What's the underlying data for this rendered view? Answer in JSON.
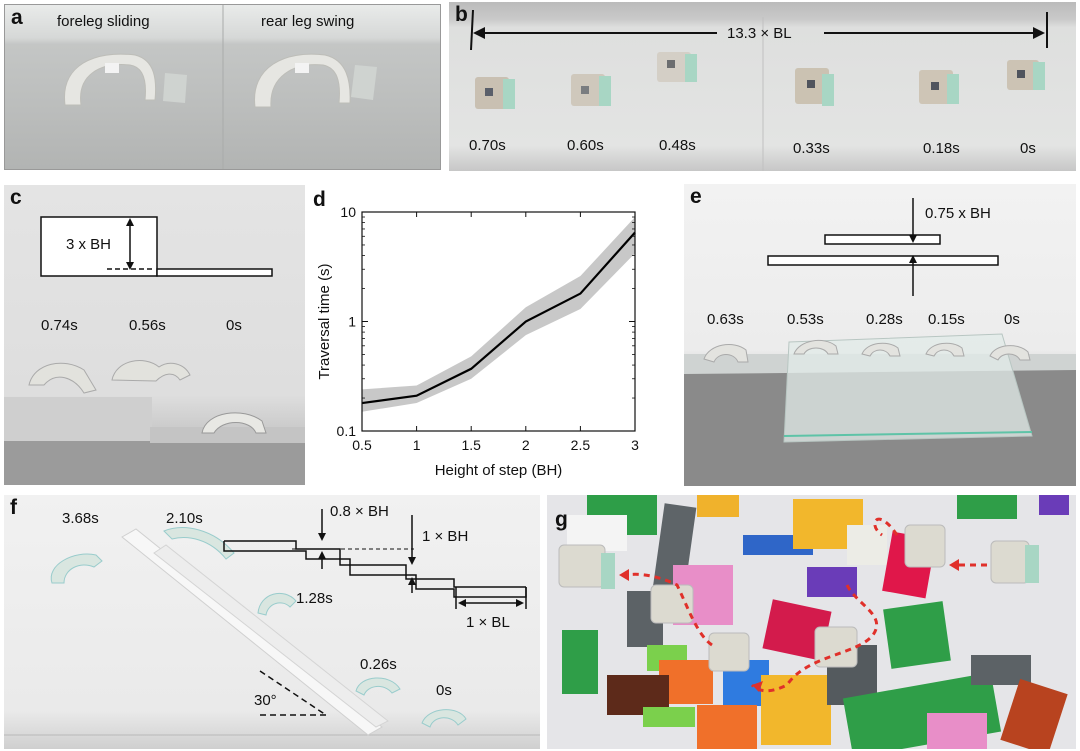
{
  "panel_a": {
    "label": "a",
    "caption_left": "foreleg sliding",
    "caption_right": "rear leg swing"
  },
  "panel_b": {
    "label": "b",
    "distance": "13.3 × BL",
    "times": [
      "0.70s",
      "0.60s",
      "0.48s",
      "0.33s",
      "0.18s",
      "0s"
    ]
  },
  "panel_c": {
    "label": "c",
    "step_height": "3 x BH",
    "times": [
      "0.74s",
      "0.56s",
      "0s"
    ]
  },
  "panel_d": {
    "label": "d"
  },
  "panel_e": {
    "label": "e",
    "gap": "0.75 x BH",
    "times": [
      "0.63s",
      "0.53s",
      "0.28s",
      "0.15s",
      "0s"
    ]
  },
  "panel_f": {
    "label": "f",
    "times": [
      "3.68s",
      "2.10s",
      "1.28s",
      "0.26s",
      "0s"
    ],
    "step_small": "0.8 × BH",
    "step_large": "1 × BH",
    "length": "1 × BL",
    "angle": "30°"
  },
  "panel_g": {
    "label": "g"
  },
  "chart_data": {
    "type": "line",
    "xlabel": "Height of step (BH)",
    "ylabel": "Traversal time (s)",
    "xlim": [
      0.5,
      3
    ],
    "ylim": [
      0.1,
      10
    ],
    "yscale": "log",
    "x": [
      0.5,
      1,
      1.5,
      2,
      2.5,
      3
    ],
    "xticks": [
      "0.5",
      "1",
      "1.5",
      "2",
      "2.5",
      "3"
    ],
    "yticks": [
      "0.1",
      "1",
      "10"
    ],
    "series": [
      {
        "values": [
          0.18,
          0.21,
          0.37,
          1.0,
          1.8,
          6.5
        ],
        "lower": [
          0.15,
          0.18,
          0.3,
          0.75,
          1.3,
          4.2
        ],
        "upper": [
          0.24,
          0.26,
          0.48,
          1.35,
          2.6,
          9.0
        ],
        "color": "#000000",
        "band_color": "#c8c8c8"
      }
    ],
    "grid": false
  },
  "colors": {
    "robot": "#dcdcd2",
    "robot_tab": "#a9d8c5",
    "arrow_red": "#e0302a"
  }
}
